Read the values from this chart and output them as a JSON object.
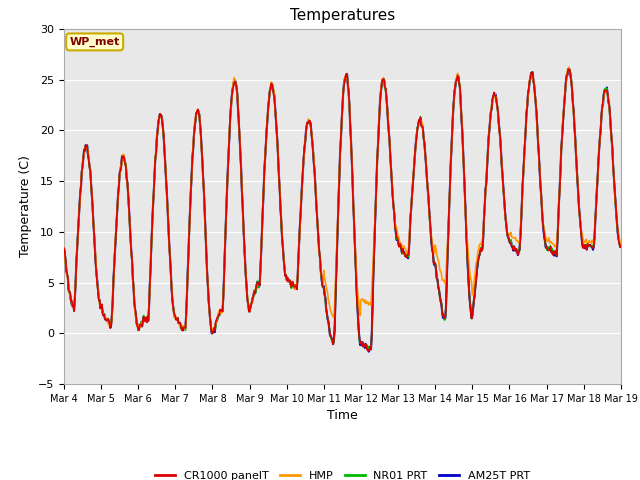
{
  "title": "Temperatures",
  "xlabel": "Time",
  "ylabel": "Temperature (C)",
  "ylim": [
    -5,
    30
  ],
  "xlim": [
    0,
    15
  ],
  "annotation_text": "WP_met",
  "fig_bg_color": "#ffffff",
  "plot_bg_color": "#e8e8e8",
  "grid_color": "#ffffff",
  "x_tick_labels": [
    "Mar 4",
    "Mar 5",
    "Mar 6",
    "Mar 7",
    "Mar 8",
    "Mar 9",
    "Mar 10",
    "Mar 11",
    "Mar 12",
    "Mar 13",
    "Mar 14",
    "Mar 15",
    "Mar 16",
    "Mar 17",
    "Mar 18",
    "Mar 19"
  ],
  "x_tick_positions": [
    0,
    1,
    2,
    3,
    4,
    5,
    6,
    7,
    8,
    9,
    10,
    11,
    12,
    13,
    14,
    15
  ],
  "series": {
    "CR1000_panelT": {
      "color": "#dd0000",
      "label": "CR1000 panelT",
      "lw": 1.2
    },
    "HMP": {
      "color": "#ff9900",
      "label": "HMP",
      "lw": 1.2
    },
    "NR01_PRT": {
      "color": "#00bb00",
      "label": "NR01 PRT",
      "lw": 1.2
    },
    "AM25T_PRT": {
      "color": "#0000cc",
      "label": "AM25T PRT",
      "lw": 1.5
    }
  },
  "day_data": {
    "starts": [
      8.5,
      2.5,
      0.5,
      1.5,
      0.0,
      2.2,
      5.5,
      4.5,
      -1.0,
      9.0,
      7.0,
      1.5,
      9.0,
      8.5,
      8.5
    ],
    "peaks": [
      18.5,
      17.5,
      21.5,
      22.0,
      25.0,
      24.5,
      21.0,
      25.5,
      25.0,
      21.0,
      25.5,
      23.5,
      25.5,
      26.0,
      24.0
    ],
    "valleys": [
      2.5,
      0.8,
      1.5,
      0.5,
      2.2,
      5.0,
      4.5,
      -1.0,
      -1.5,
      7.5,
      1.5,
      8.5,
      8.0,
      8.0,
      8.5
    ],
    "hmp_extra_offset": [
      0,
      0,
      0,
      0,
      0,
      0,
      0,
      3,
      5,
      2,
      5,
      3,
      4,
      3,
      2
    ]
  }
}
